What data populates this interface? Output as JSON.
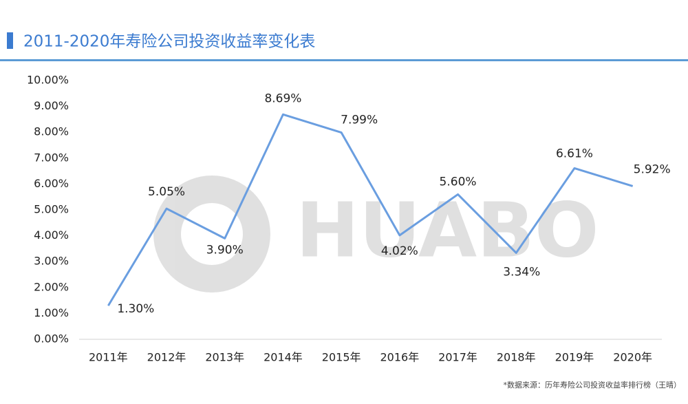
{
  "chart_data": {
    "type": "line",
    "title": "2011-2020年寿险公司投资收益率变化表",
    "watermark": "HUABO",
    "source": "*数据来源：历年寿险公司投资收益率排行榜（王晴）",
    "categories": [
      "2011年",
      "2012年",
      "2013年",
      "2014年",
      "2015年",
      "2016年",
      "2017年",
      "2018年",
      "2019年",
      "2020年"
    ],
    "values": [
      1.3,
      5.05,
      3.9,
      8.69,
      7.99,
      4.02,
      5.6,
      3.34,
      6.61,
      5.92
    ],
    "value_labels": [
      "1.30%",
      "5.05%",
      "3.90%",
      "8.69%",
      "7.99%",
      "4.02%",
      "5.60%",
      "3.34%",
      "6.61%",
      "5.92%"
    ],
    "color": "#6a9ee0",
    "ylim": [
      0,
      10
    ],
    "yticks": [
      {
        "value": 0,
        "label": "0.00%"
      },
      {
        "value": 1,
        "label": "1.00%"
      },
      {
        "value": 2,
        "label": "2.00%"
      },
      {
        "value": 3,
        "label": "3.00%"
      },
      {
        "value": 4,
        "label": "4.00%"
      },
      {
        "value": 5,
        "label": "5.00%"
      },
      {
        "value": 6,
        "label": "6.00%"
      },
      {
        "value": 7,
        "label": "7.00%"
      },
      {
        "value": 8,
        "label": "8.00%"
      },
      {
        "value": 9,
        "label": "9.00%"
      },
      {
        "value": 10,
        "label": "10.00%"
      }
    ],
    "grid": false
  }
}
